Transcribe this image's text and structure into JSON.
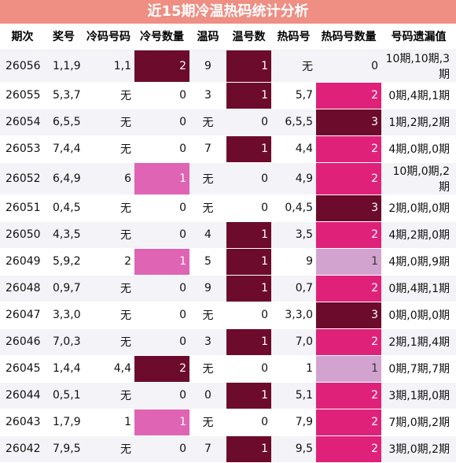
{
  "title": "近15期冷温热码统计分析",
  "headers": [
    "期次",
    "奖号",
    "冷码号码",
    "冷号数量",
    "温码",
    "温号数",
    "热码号",
    "热码号数量",
    "号码遗漏值"
  ],
  "rows": [
    {
      "issue": "26056",
      "award": "1,1,9",
      "cold": "1,1",
      "cold_count": "2",
      "warm": "9",
      "warm_count": "1",
      "hot": "无",
      "hot_count": "0",
      "miss": "10期,10期,3期"
    },
    {
      "issue": "26055",
      "award": "5,3,7",
      "cold": "无",
      "cold_count": "0",
      "warm": "3",
      "warm_count": "1",
      "hot": "5,7",
      "hot_count": "2",
      "miss": "0期,4期,1期"
    },
    {
      "issue": "26054",
      "award": "6,5,5",
      "cold": "无",
      "cold_count": "0",
      "warm": "无",
      "warm_count": "0",
      "hot": "6,5,5",
      "hot_count": "3",
      "miss": "1期,2期,2期"
    },
    {
      "issue": "26053",
      "award": "7,4,4",
      "cold": "无",
      "cold_count": "0",
      "warm": "7",
      "warm_count": "1",
      "hot": "4,4",
      "hot_count": "2",
      "miss": "4期,0期,0期"
    },
    {
      "issue": "26052",
      "award": "6,4,9",
      "cold": "6",
      "cold_count": "1",
      "warm": "无",
      "warm_count": "0",
      "hot": "4,9",
      "hot_count": "2",
      "miss": "10期,0期,2期"
    },
    {
      "issue": "26051",
      "award": "0,4,5",
      "cold": "无",
      "cold_count": "0",
      "warm": "无",
      "warm_count": "0",
      "hot": "0,4,5",
      "hot_count": "3",
      "miss": "2期,0期,0期"
    },
    {
      "issue": "26050",
      "award": "4,3,5",
      "cold": "无",
      "cold_count": "0",
      "warm": "4",
      "warm_count": "1",
      "hot": "3,5",
      "hot_count": "2",
      "miss": "4期,2期,0期"
    },
    {
      "issue": "26049",
      "award": "5,9,2",
      "cold": "2",
      "cold_count": "1",
      "warm": "5",
      "warm_count": "1",
      "hot": "9",
      "hot_count": "1",
      "miss": "4期,0期,9期"
    },
    {
      "issue": "26048",
      "award": "0,9,7",
      "cold": "无",
      "cold_count": "0",
      "warm": "9",
      "warm_count": "1",
      "hot": "0,7",
      "hot_count": "2",
      "miss": "0期,4期,1期"
    },
    {
      "issue": "26047",
      "award": "3,3,0",
      "cold": "无",
      "cold_count": "0",
      "warm": "无",
      "warm_count": "0",
      "hot": "3,3,0",
      "hot_count": "3",
      "miss": "0期,0期,0期"
    },
    {
      "issue": "26046",
      "award": "7,0,3",
      "cold": "无",
      "cold_count": "0",
      "warm": "3",
      "warm_count": "1",
      "hot": "7,0",
      "hot_count": "2",
      "miss": "2期,1期,4期"
    },
    {
      "issue": "26045",
      "award": "1,4,4",
      "cold": "4,4",
      "cold_count": "2",
      "warm": "无",
      "warm_count": "0",
      "hot": "1",
      "hot_count": "1",
      "miss": "0期,7期,7期"
    },
    {
      "issue": "26044",
      "award": "0,5,1",
      "cold": "无",
      "cold_count": "0",
      "warm": "0",
      "warm_count": "1",
      "hot": "5,1",
      "hot_count": "2",
      "miss": "3期,1期,0期"
    },
    {
      "issue": "26043",
      "award": "1,7,9",
      "cold": "1",
      "cold_count": "1",
      "warm": "无",
      "warm_count": "0",
      "hot": "7,9",
      "hot_count": "2",
      "miss": "7期,0期,2期"
    },
    {
      "issue": "26042",
      "award": "7,9,5",
      "cold": "无",
      "cold_count": "0",
      "warm": "7",
      "warm_count": "1",
      "hot": "9,5",
      "hot_count": "2",
      "miss": "3期,0期,2期"
    }
  ],
  "colors": {
    "title_bg": "#ef8e82",
    "dark": "#6c0b2b",
    "pink": "#e0217a",
    "light_pink": "#df64b4",
    "lavender": "#d3a3d0",
    "stripe": "#f4f3f8"
  }
}
